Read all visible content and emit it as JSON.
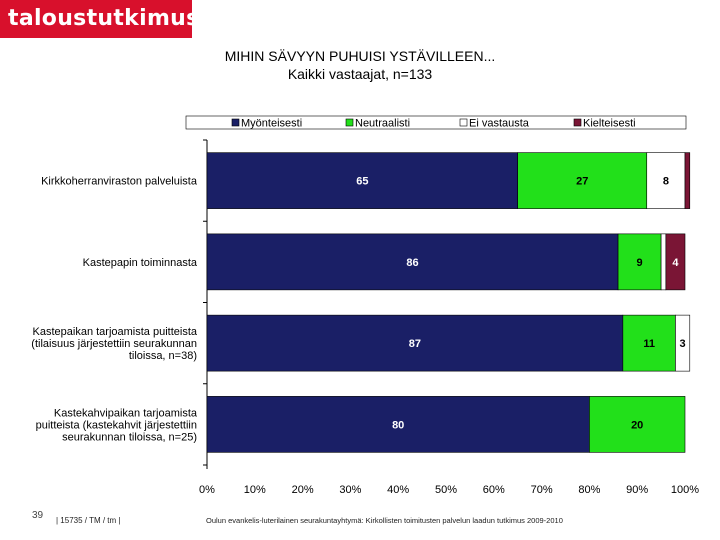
{
  "brand": {
    "logo_text": "taloustutkimus oy",
    "color": "#d8102c"
  },
  "chart_data": {
    "type": "bar",
    "orientation": "horizontal",
    "stacked": true,
    "title": "MIHIN SÄVYYN PUHUISI YSTÄVILLEEN...",
    "subtitle": "Kaikki vastaajat, n=133",
    "categories": [
      "Kirkkoherranviraston palveluista",
      "Kastepapin toiminnasta",
      "Kastepaikan tarjoamista puitteista (tilaisuus järjestettiin seurakunnan tiloissa, n=38)",
      "Kastekahvipaikan tarjoamista puitteista (kastekahvit järjestettiin seurakunnan tiloissa, n=25)"
    ],
    "category_lines": [
      [
        "Kirkkoherranviraston palveluista"
      ],
      [
        "Kastepapin toiminnasta"
      ],
      [
        "Kastepaikan tarjoamista puitteista",
        "(tilaisuus järjestettiin seurakunnan",
        "tiloissa, n=38)"
      ],
      [
        "Kastekahvipaikan tarjoamista",
        "puitteista (kastekahvit järjestettiin",
        "seurakunnan tiloissa, n=25)"
      ]
    ],
    "series": [
      {
        "name": "Myönteisesti",
        "color": "#1a1f66",
        "values": [
          65,
          86,
          87,
          80
        ],
        "labels": [
          "65",
          "86",
          "87",
          "80"
        ]
      },
      {
        "name": "Neutraalisti",
        "color": "#22e01a",
        "values": [
          27,
          9,
          11,
          20
        ],
        "labels": [
          "27",
          "9",
          "11",
          "20"
        ]
      },
      {
        "name": "Ei vastausta",
        "color": "#ffffff",
        "values": [
          8,
          1,
          3,
          0
        ],
        "labels": [
          "8",
          "",
          "3",
          ""
        ]
      },
      {
        "name": "Kielteisesti",
        "color": "#7a1535",
        "values": [
          1,
          4,
          0,
          0
        ],
        "labels": [
          "",
          "4",
          "",
          ""
        ]
      }
    ],
    "xlim": [
      0,
      100
    ],
    "xticks": [
      "0%",
      "10%",
      "20%",
      "30%",
      "40%",
      "50%",
      "60%",
      "70%",
      "80%",
      "90%",
      "100%"
    ],
    "legend_position": "top",
    "xlabel": "",
    "ylabel": ""
  },
  "footer": {
    "page_number": "39",
    "code": "| 15735 / TM / tm |",
    "source": "Oulun evankelis-luterilainen seurakuntayhtymä: Kirkollisten toimitusten palvelun laadun tutkimus 2009-2010"
  }
}
